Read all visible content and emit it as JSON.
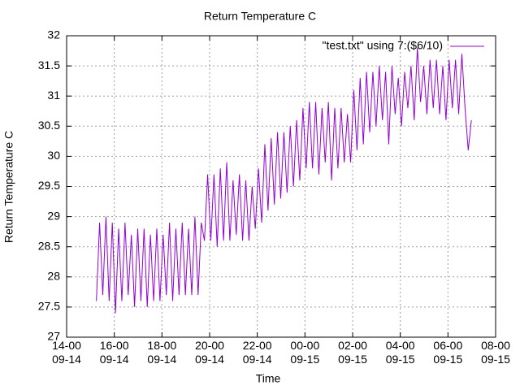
{
  "chart_data": {
    "type": "line",
    "title": "Return Temperature C",
    "xlabel": "Time",
    "ylabel": "Return Temperature C",
    "legend": "top-right",
    "grid": true,
    "xlim": [
      "09-14 14:00",
      "09-15 08:00"
    ],
    "xticks": [
      {
        "value": "09-14 14:00",
        "label": "14-00\n09-14"
      },
      {
        "value": "09-14 16:00",
        "label": "16-00\n09-14"
      },
      {
        "value": "09-14 18:00",
        "label": "18-00\n09-14"
      },
      {
        "value": "09-14 20:00",
        "label": "20-00\n09-14"
      },
      {
        "value": "09-14 22:00",
        "label": "22-00\n09-14"
      },
      {
        "value": "09-15 00:00",
        "label": "00-00\n09-15"
      },
      {
        "value": "09-15 02:00",
        "label": "02-00\n09-15"
      },
      {
        "value": "09-15 04:00",
        "label": "04-00\n09-15"
      },
      {
        "value": "09-15 06:00",
        "label": "06-00\n09-15"
      },
      {
        "value": "09-15 08:00",
        "label": "08-00\n09-15"
      }
    ],
    "ylim": [
      27,
      32
    ],
    "yticks": [
      27,
      27.5,
      28,
      28.5,
      29,
      29.5,
      30,
      30.5,
      31,
      31.5,
      32
    ],
    "x": [
      "09-14 15:15",
      "09-14 15:23",
      "09-14 15:31",
      "09-14 15:39",
      "09-14 15:47",
      "09-14 15:55",
      "09-14 16:03",
      "09-14 16:11",
      "09-14 16:19",
      "09-14 16:27",
      "09-14 16:35",
      "09-14 16:43",
      "09-14 16:51",
      "09-14 16:59",
      "09-14 17:07",
      "09-14 17:15",
      "09-14 17:23",
      "09-14 17:31",
      "09-14 17:39",
      "09-14 17:47",
      "09-14 17:55",
      "09-14 18:03",
      "09-14 18:11",
      "09-14 18:19",
      "09-14 18:27",
      "09-14 18:35",
      "09-14 18:43",
      "09-14 18:51",
      "09-14 18:59",
      "09-14 19:07",
      "09-14 19:15",
      "09-14 19:23",
      "09-14 19:31",
      "09-14 19:39",
      "09-14 19:47",
      "09-14 19:55",
      "09-14 20:03",
      "09-14 20:11",
      "09-14 20:19",
      "09-14 20:27",
      "09-14 20:35",
      "09-14 20:43",
      "09-14 20:51",
      "09-14 20:59",
      "09-14 21:07",
      "09-14 21:15",
      "09-14 21:23",
      "09-14 21:31",
      "09-14 21:39",
      "09-14 21:47",
      "09-14 21:55",
      "09-14 22:03",
      "09-14 22:11",
      "09-14 22:19",
      "09-14 22:27",
      "09-14 22:35",
      "09-14 22:43",
      "09-14 22:51",
      "09-14 22:59",
      "09-14 23:07",
      "09-14 23:15",
      "09-14 23:23",
      "09-14 23:31",
      "09-14 23:39",
      "09-14 23:47",
      "09-14 23:55",
      "09-15 00:03",
      "09-15 00:11",
      "09-15 00:19",
      "09-15 00:27",
      "09-15 00:35",
      "09-15 00:43",
      "09-15 00:51",
      "09-15 00:59",
      "09-15 01:07",
      "09-15 01:15",
      "09-15 01:23",
      "09-15 01:31",
      "09-15 01:39",
      "09-15 01:47",
      "09-15 01:55",
      "09-15 02:03",
      "09-15 02:11",
      "09-15 02:19",
      "09-15 02:27",
      "09-15 02:35",
      "09-15 02:43",
      "09-15 02:51",
      "09-15 02:59",
      "09-15 03:07",
      "09-15 03:15",
      "09-15 03:23",
      "09-15 03:31",
      "09-15 03:39",
      "09-15 03:47",
      "09-15 03:55",
      "09-15 04:03",
      "09-15 04:11",
      "09-15 04:19",
      "09-15 04:27",
      "09-15 04:35",
      "09-15 04:43",
      "09-15 04:51",
      "09-15 04:59",
      "09-15 05:07",
      "09-15 05:15",
      "09-15 05:23",
      "09-15 05:31",
      "09-15 05:39",
      "09-15 05:47",
      "09-15 05:55",
      "09-15 06:03",
      "09-15 06:11",
      "09-15 06:19",
      "09-15 06:27",
      "09-15 06:35",
      "09-15 06:43",
      "09-15 06:51",
      "09-15 06:59"
    ],
    "series": [
      {
        "name": "\"test.txt\" using 7:($6/10)",
        "color": "#9400d3",
        "values": [
          27.6,
          28.9,
          27.7,
          29.0,
          27.6,
          28.9,
          27.4,
          28.8,
          27.6,
          28.9,
          27.7,
          28.7,
          27.5,
          28.8,
          27.6,
          28.8,
          27.5,
          28.7,
          27.6,
          28.8,
          27.6,
          28.7,
          27.7,
          28.9,
          27.6,
          28.8,
          27.7,
          28.9,
          27.7,
          28.8,
          27.7,
          29.0,
          27.7,
          28.9,
          28.6,
          29.7,
          28.6,
          29.7,
          28.5,
          29.8,
          28.6,
          29.9,
          28.6,
          29.6,
          28.7,
          29.7,
          28.6,
          29.6,
          28.6,
          29.5,
          28.8,
          29.8,
          28.9,
          30.2,
          29.1,
          30.3,
          29.2,
          30.4,
          29.3,
          30.4,
          29.4,
          30.5,
          29.5,
          30.6,
          29.6,
          30.8,
          29.8,
          30.9,
          29.8,
          30.9,
          29.7,
          30.8,
          29.9,
          30.9,
          29.6,
          30.8,
          29.8,
          30.8,
          29.9,
          30.7,
          29.9,
          31.1,
          30.1,
          31.3,
          30.2,
          31.4,
          30.4,
          31.4,
          30.5,
          31.5,
          30.6,
          31.4,
          30.2,
          31.5,
          30.7,
          31.3,
          30.5,
          31.4,
          30.8,
          31.5,
          30.6,
          31.8,
          30.9,
          31.5,
          30.7,
          31.6,
          30.8,
          31.6,
          30.7,
          31.5,
          30.6,
          31.6,
          30.8,
          31.6,
          30.7,
          31.7,
          30.8,
          30.1,
          30.6
        ]
      }
    ]
  }
}
